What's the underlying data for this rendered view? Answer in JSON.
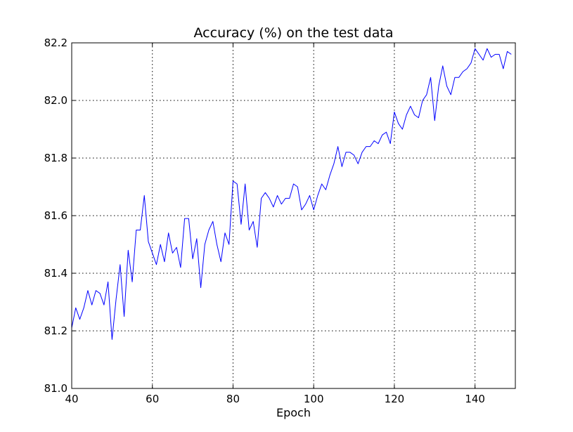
{
  "chart_data": {
    "type": "line",
    "title": "Accuracy (%) on the test data",
    "xlabel": "Epoch",
    "ylabel": "",
    "xlim": [
      40,
      150
    ],
    "ylim": [
      81.0,
      82.2
    ],
    "xticks": [
      40,
      60,
      80,
      100,
      120,
      140
    ],
    "yticks": [
      81.0,
      81.2,
      81.4,
      81.6,
      81.8,
      82.0,
      82.2
    ],
    "xtick_labels": [
      "40",
      "60",
      "80",
      "100",
      "120",
      "140"
    ],
    "ytick_labels": [
      "81.0",
      "81.2",
      "81.4",
      "81.6",
      "81.8",
      "82.0",
      "82.2"
    ],
    "grid": true,
    "series": [
      {
        "color": "#0000ff",
        "x": [
          40,
          41,
          42,
          43,
          44,
          45,
          46,
          47,
          48,
          49,
          50,
          51,
          52,
          53,
          54,
          55,
          56,
          57,
          58,
          59,
          60,
          61,
          62,
          63,
          64,
          65,
          66,
          67,
          68,
          69,
          70,
          71,
          72,
          73,
          74,
          75,
          76,
          77,
          78,
          79,
          80,
          81,
          82,
          83,
          84,
          85,
          86,
          87,
          88,
          89,
          90,
          91,
          92,
          93,
          94,
          95,
          96,
          97,
          98,
          99,
          100,
          101,
          102,
          103,
          104,
          105,
          106,
          107,
          108,
          109,
          110,
          111,
          112,
          113,
          114,
          115,
          116,
          117,
          118,
          119,
          120,
          121,
          122,
          123,
          124,
          125,
          126,
          127,
          128,
          129,
          130,
          131,
          132,
          133,
          134,
          135,
          136,
          137,
          138,
          139,
          140,
          141,
          142,
          143,
          144,
          145,
          146,
          147,
          148,
          149
        ],
        "y": [
          81.21,
          81.28,
          81.24,
          81.28,
          81.34,
          81.29,
          81.34,
          81.33,
          81.29,
          81.37,
          81.17,
          81.31,
          81.43,
          81.25,
          81.48,
          81.37,
          81.55,
          81.55,
          81.67,
          81.51,
          81.47,
          81.43,
          81.5,
          81.44,
          81.54,
          81.47,
          81.49,
          81.42,
          81.59,
          81.59,
          81.45,
          81.52,
          81.35,
          81.5,
          81.55,
          81.58,
          81.5,
          81.44,
          81.54,
          81.5,
          81.72,
          81.71,
          81.57,
          81.71,
          81.55,
          81.58,
          81.49,
          81.66,
          81.68,
          81.66,
          81.63,
          81.67,
          81.64,
          81.66,
          81.66,
          81.71,
          81.7,
          81.62,
          81.64,
          81.67,
          81.62,
          81.67,
          81.71,
          81.69,
          81.74,
          81.78,
          81.84,
          81.77,
          81.82,
          81.82,
          81.81,
          81.78,
          81.82,
          81.84,
          81.84,
          81.86,
          81.85,
          81.88,
          81.89,
          81.85,
          81.96,
          81.92,
          81.9,
          81.95,
          81.98,
          81.95,
          81.94,
          82.0,
          82.02,
          82.08,
          81.93,
          82.05,
          82.12,
          82.05,
          82.02,
          82.08,
          82.08,
          82.1,
          82.11,
          82.13,
          82.18,
          82.16,
          82.14,
          82.18,
          82.15,
          82.16,
          82.16,
          82.11,
          82.17,
          82.16
        ]
      }
    ]
  }
}
